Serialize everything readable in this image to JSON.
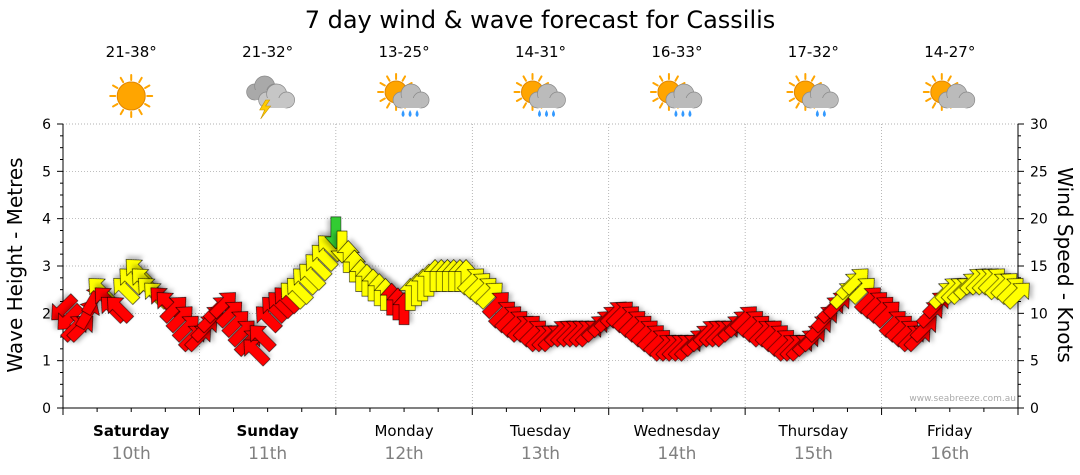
{
  "chart_data": {
    "type": "line",
    "title": "7 day wind & wave forecast for Cassilis",
    "ylabel_left": "Wave Height - Metres",
    "ylabel_right": "Wind Speed - Knots",
    "ylim_left": [
      0,
      6
    ],
    "ylim_right": [
      0,
      30
    ],
    "yticks_left": [
      "0",
      "1",
      "2",
      "3",
      "4",
      "5",
      "6"
    ],
    "yticks_right": [
      "0",
      "5",
      "10",
      "15",
      "20",
      "25",
      "30"
    ],
    "grid": true,
    "watermark": "www.seabreeze.com.au",
    "days": [
      {
        "name": "Saturday",
        "date": "10th",
        "temp": "21-38°",
        "weather": "sunny",
        "bold": true
      },
      {
        "name": "Sunday",
        "date": "11th",
        "temp": "21-32°",
        "weather": "thunderstorm",
        "bold": true
      },
      {
        "name": "Monday",
        "date": "12th",
        "temp": "13-25°",
        "weather": "sun-showers",
        "bold": false
      },
      {
        "name": "Tuesday",
        "date": "13th",
        "temp": "14-31°",
        "weather": "sun-showers",
        "bold": false
      },
      {
        "name": "Wednesday",
        "date": "14th",
        "temp": "16-33°",
        "weather": "sun-showers",
        "bold": false
      },
      {
        "name": "Thursday",
        "date": "15th",
        "temp": "17-32°",
        "weather": "sun-light-showers",
        "bold": false
      },
      {
        "name": "Friday",
        "date": "16th",
        "temp": "14-27°",
        "weather": "partly-cloudy",
        "bold": false
      }
    ],
    "wind_series": {
      "name": "Wind Speed - Knots",
      "hour_step": 1,
      "values_knots": [
        10.5,
        9.5,
        8.5,
        8.5,
        10,
        11.5,
        12.5,
        11.5,
        10.5,
        10.5,
        12.5,
        13.5,
        14.5,
        13.5,
        12.5,
        12,
        11.5,
        11,
        10.5,
        9.5,
        8.5,
        7.5,
        7.5,
        8.5,
        9.5,
        10.5,
        11,
        10,
        9,
        8,
        7,
        6,
        7.5,
        9.5,
        10.5,
        11,
        11.5,
        12,
        12.5,
        13.5,
        14,
        15,
        16,
        17,
        18.5,
        17,
        16,
        15,
        14,
        13.5,
        13,
        12.5,
        12,
        11.5,
        11,
        10.5,
        12,
        12.5,
        13,
        13.5,
        14,
        14,
        14,
        14,
        14,
        14,
        13.5,
        13,
        12.5,
        12,
        11,
        10,
        9.5,
        9,
        8.5,
        8.5,
        8,
        7.5,
        7.5,
        7.5,
        8,
        8,
        8,
        8,
        8,
        8,
        8.5,
        9,
        9.5,
        10,
        10,
        9.5,
        9,
        8.5,
        8,
        7.5,
        7,
        6.5,
        6.5,
        6.5,
        6.5,
        6.5,
        7,
        7.5,
        8,
        8,
        8,
        8,
        8.5,
        9,
        9.5,
        9,
        8.5,
        8,
        8,
        7.5,
        7,
        6.5,
        6.5,
        6.5,
        7,
        7.5,
        8.5,
        9.5,
        10.5,
        11,
        12,
        13,
        13.5,
        12.5,
        11.5,
        11,
        10.5,
        10,
        9,
        8.5,
        8,
        7.5,
        7.5,
        8.5,
        10,
        11,
        12,
        12.5,
        12.5,
        12.5,
        13,
        13.5,
        13.5,
        13.5,
        13.5,
        13,
        13,
        12.5,
        12
      ],
      "direction_deg": [
        135,
        135,
        315,
        315,
        300,
        300,
        225,
        225,
        225,
        225,
        225,
        225,
        225,
        225,
        225,
        225,
        225,
        225,
        315,
        315,
        315,
        315,
        315,
        315,
        315,
        315,
        315,
        315,
        315,
        315,
        315,
        225,
        225,
        225,
        225,
        225,
        225,
        225,
        225,
        225,
        225,
        225,
        225,
        225,
        90,
        90,
        270,
        270,
        270,
        270,
        270,
        270,
        270,
        270,
        270,
        270,
        270,
        270,
        270,
        270,
        270,
        270,
        270,
        270,
        270,
        270,
        315,
        315,
        315,
        315,
        315,
        315,
        315,
        315,
        315,
        315,
        315,
        315,
        315,
        315,
        315,
        315,
        315,
        315,
        315,
        315,
        315,
        315,
        315,
        315,
        315,
        315,
        315,
        315,
        315,
        315,
        315,
        315,
        315,
        315,
        315,
        315,
        315,
        315,
        315,
        315,
        315,
        315,
        315,
        315,
        315,
        315,
        315,
        315,
        315,
        315,
        315,
        315,
        315,
        315,
        315,
        315,
        315,
        315,
        315,
        315,
        315,
        315,
        315,
        315,
        315,
        315,
        315,
        315,
        315,
        315,
        315,
        315,
        315,
        315,
        315,
        315,
        315,
        315,
        315,
        315,
        315,
        315,
        315,
        315,
        315,
        315,
        315,
        315,
        315,
        315
      ],
      "color_thresholds": {
        "red_below": 12,
        "yellow_below": 18,
        "red": "#ff0000",
        "yellow": "#ffff00",
        "green": "#33cc33"
      }
    },
    "colors": {
      "grid": "#999999",
      "axis": "#000000",
      "day_name": "#000000",
      "day_date": "#808080",
      "sun": "#ffa500",
      "cloud": "#bbbbbb",
      "rain": "#3399ff",
      "bolt": "#ffcc00"
    }
  }
}
